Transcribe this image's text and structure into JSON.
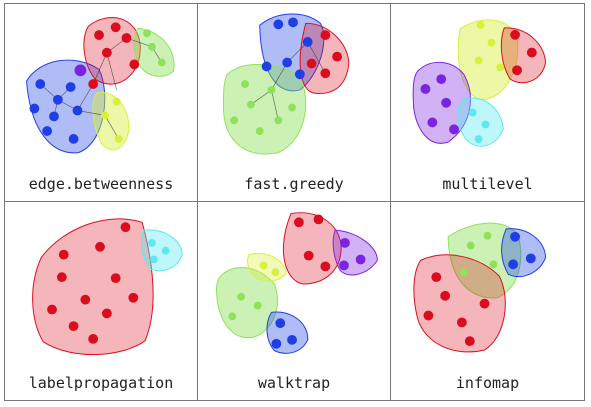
{
  "panels": [
    {
      "label": "edge.betweenness"
    },
    {
      "label": "fast.greedy"
    },
    {
      "label": "multilevel"
    },
    {
      "label": "labelpropagation"
    },
    {
      "label": "walktrap"
    },
    {
      "label": "infomap"
    }
  ],
  "colors": {
    "red": "#d90d1d",
    "blue": "#1e3ee6",
    "green": "#8fe15a",
    "yellow": "#d8f03a",
    "purple": "#7a23e0",
    "cyan": "#5fe8f0"
  }
}
